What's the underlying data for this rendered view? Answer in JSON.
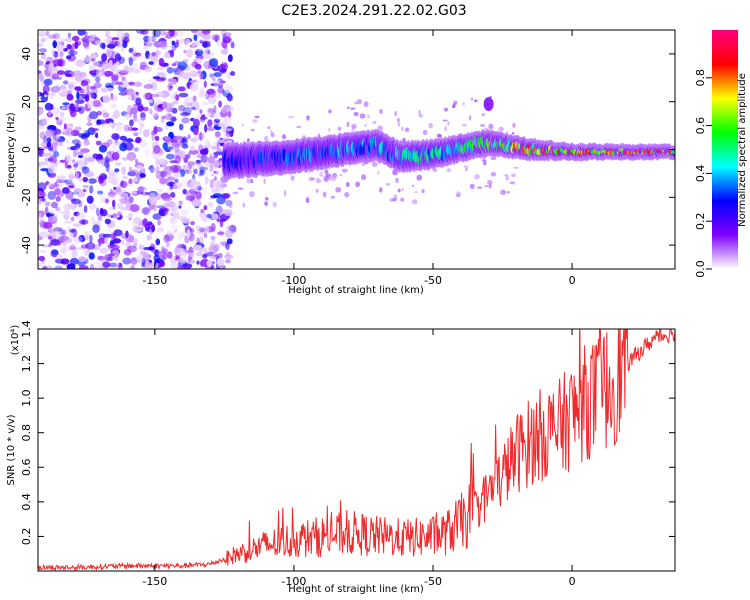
{
  "title": "C2E3.2024.291.22.02.G03",
  "chart_data": [
    {
      "type": "heatmap",
      "xlabel": "Height of straight line (km)",
      "ylabel": "Frequency (Hz)",
      "xlim": [
        -192,
        37
      ],
      "ylim": [
        -50,
        50
      ],
      "xticks": [
        -150,
        -100,
        -50,
        0
      ],
      "yticks": [
        -40,
        -20,
        0,
        20,
        40
      ],
      "grid": false,
      "colorbar": {
        "label": "Normalized spectral amplitude",
        "range": [
          0,
          1
        ],
        "ticks": [
          0.0,
          0.2,
          0.4,
          0.6,
          0.8
        ],
        "tick_labels": [
          "0.0",
          "0.2",
          "0.4",
          "0.6",
          "0.8"
        ],
        "colors": [
          "#ffffff",
          "#7f00ff",
          "#0000ff",
          "#00ffff",
          "#00ff00",
          "#ffff00",
          "#ff0000",
          "#ff007f"
        ]
      },
      "regions": [
        {
          "name": "noise",
          "x": [
            -192,
            -122
          ],
          "y": [
            -50,
            50
          ],
          "amplitude": 0.12
        },
        {
          "name": "signal band",
          "x": [
            -125,
            37
          ],
          "center_freq": [
            [
              -125,
              -5
            ],
            [
              -100,
              -3
            ],
            [
              -70,
              2
            ],
            [
              -62,
              -3
            ],
            [
              -50,
              -2
            ],
            [
              -30,
              3
            ],
            [
              -15,
              0
            ],
            [
              0,
              -1
            ],
            [
              37,
              -1
            ]
          ],
          "half_width": [
            [
              -125,
              6
            ],
            [
              -60,
              5
            ],
            [
              -30,
              4
            ],
            [
              0,
              2
            ],
            [
              37,
              1.5
            ]
          ],
          "amplitude": [
            [
              -125,
              0.3
            ],
            [
              -80,
              0.45
            ],
            [
              -40,
              0.55
            ],
            [
              -20,
              0.85
            ],
            [
              37,
              0.95
            ]
          ]
        },
        {
          "name": "blob",
          "x": -30,
          "y": 19,
          "amplitude": 0.15
        }
      ]
    },
    {
      "type": "line",
      "xlabel": "Height of straight line (km)",
      "ylabel": "SNR (10 * v/v)",
      "multiplier": "(x10⁴)",
      "xlim": [
        -192,
        37
      ],
      "ylim": [
        0,
        1.4
      ],
      "xticks": [
        -150,
        -100,
        -50,
        0
      ],
      "yticks": [
        0.2,
        0.4,
        0.6,
        0.8,
        1.0,
        1.2,
        1.4
      ],
      "grid": false,
      "series": [
        {
          "color": "#ee2b2b",
          "x": [
            -192,
            -180,
            -160,
            -140,
            -130,
            -120,
            -110,
            -100,
            -90,
            -80,
            -70,
            -60,
            -50,
            -45,
            -40,
            -35,
            -30,
            -25,
            -20,
            -15,
            -10,
            -5,
            0,
            5,
            10,
            15,
            20,
            25,
            30,
            37
          ],
          "y": [
            0.02,
            0.02,
            0.03,
            0.03,
            0.04,
            0.1,
            0.15,
            0.18,
            0.2,
            0.22,
            0.2,
            0.19,
            0.2,
            0.22,
            0.28,
            0.35,
            0.45,
            0.55,
            0.68,
            0.75,
            0.8,
            0.82,
            0.9,
            0.98,
            1.02,
            1.1,
            1.2,
            1.28,
            1.35,
            1.38
          ]
        }
      ]
    }
  ]
}
